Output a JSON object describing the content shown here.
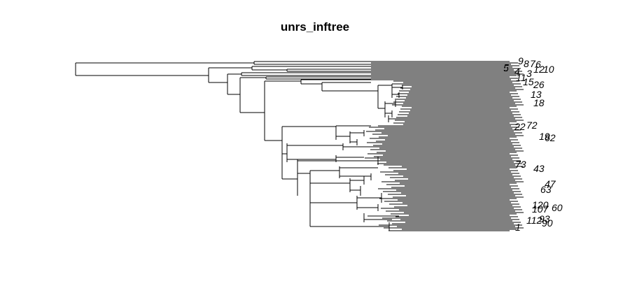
{
  "figure": {
    "title": "unrs_inftree"
  },
  "tree": {
    "type": "phylogram",
    "line_color": "#000000",
    "visible_tip_labels": [
      "9",
      "8",
      "7",
      "6",
      "5",
      "4",
      "1",
      "2",
      "10",
      "3",
      "11",
      "15",
      "26",
      "13",
      "18",
      "22",
      "72",
      "19",
      "62",
      "73",
      "43",
      "47",
      "63",
      "107",
      "93",
      "112",
      "120",
      "60",
      "90",
      "1"
    ]
  }
}
